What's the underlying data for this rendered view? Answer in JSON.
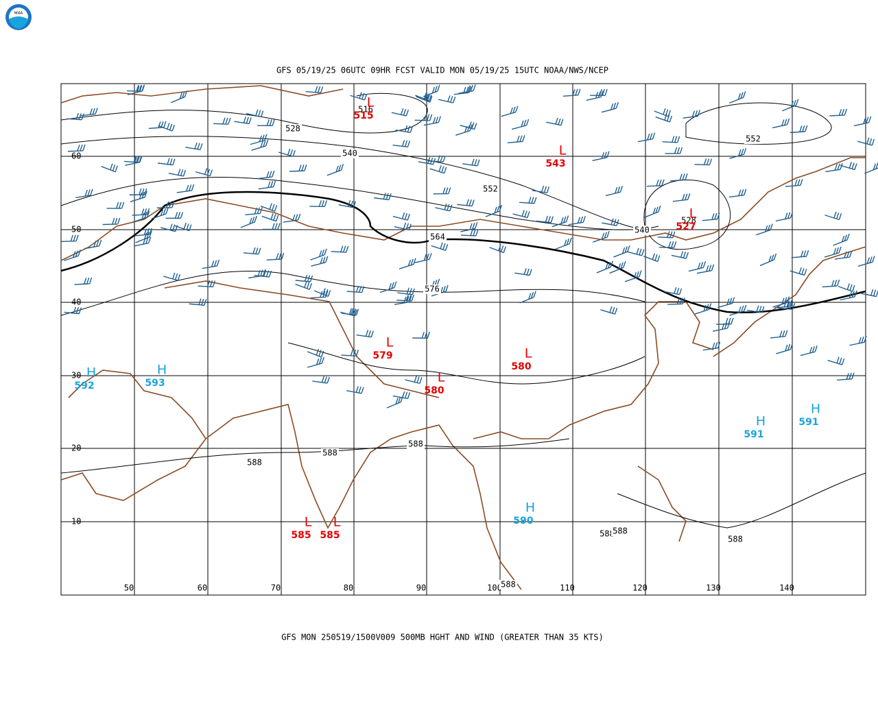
{
  "header": {
    "title": "GFS 05/19/25 06UTC 09HR FCST VALID MON 05/19/25 15UTC NOAA/NWS/NCEP"
  },
  "footer": {
    "caption": "GFS MON 250519/1500V009 500MB HGHT AND WIND (GREATER THAN 35 KTS)"
  },
  "logo": {
    "text": "NOAA"
  },
  "map": {
    "lat_labels": [
      "60",
      "50",
      "40",
      "30",
      "20",
      "10"
    ],
    "lon_labels": [
      "50",
      "60",
      "70",
      "80",
      "90",
      "100",
      "110",
      "120",
      "130",
      "140"
    ],
    "contour_labels": [
      "516",
      "528",
      "540",
      "552",
      "564",
      "576",
      "552",
      "540",
      "528",
      "588",
      "588",
      "588",
      "588",
      "588",
      "588",
      "588"
    ],
    "centers": [
      {
        "kind": "L",
        "value": "515"
      },
      {
        "kind": "L",
        "value": "543"
      },
      {
        "kind": "L",
        "value": "527"
      },
      {
        "kind": "L",
        "value": "579"
      },
      {
        "kind": "L",
        "value": "580"
      },
      {
        "kind": "L",
        "value": "580"
      },
      {
        "kind": "L",
        "value": "585"
      },
      {
        "kind": "L",
        "value": "585"
      },
      {
        "kind": "H",
        "value": "592"
      },
      {
        "kind": "H",
        "value": "593"
      },
      {
        "kind": "H",
        "value": "590"
      },
      {
        "kind": "H",
        "value": "591"
      },
      {
        "kind": "H",
        "value": "591"
      }
    ]
  }
}
